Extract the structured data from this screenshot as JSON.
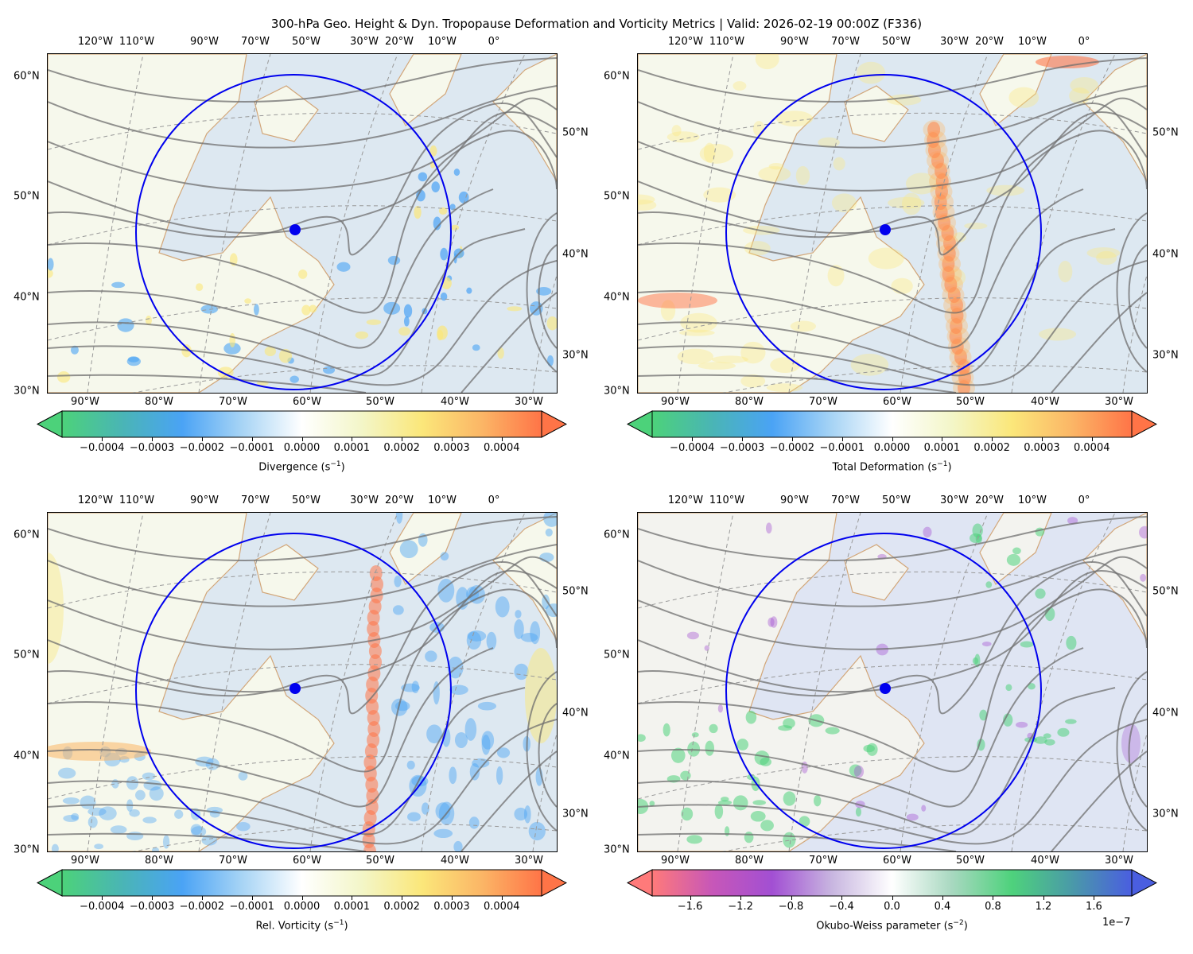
{
  "chart_data": {
    "type": "heatmap",
    "title": "300-hPa Geo. Height & Dyn. Tropopause Deformation and Vorticity Metrics |  Valid: 2026-02-19 00:00Z (F336)",
    "overlays": {
      "contours": "300-hPa geopotential height (gray)",
      "circle": "blue radius ring around storm center",
      "center_marker": "blue dot"
    },
    "panels": [
      {
        "id": "divergence",
        "field": "Divergence",
        "colorbar_label": "Divergence (s",
        "colorbar_unit_exp": "−1",
        "colorbar_range": [
          -0.00048,
          0.00048
        ],
        "colorbar_ticks": [
          "−0.0004",
          "−0.0003",
          "−0.0002",
          "−0.0001",
          "0.0000",
          "0.0001",
          "0.0002",
          "0.0003",
          "0.0004"
        ],
        "colorbar_tick_values": [
          -0.0004,
          -0.0003,
          -0.0002,
          -0.0001,
          0.0,
          0.0001,
          0.0002,
          0.0003,
          0.0004
        ],
        "colormap": [
          "#4cd27a",
          "#4ab5b5",
          "#4aa3f5",
          "#a7d4f5",
          "#ffffff",
          "#f3f6c8",
          "#fbe77a",
          "#fbb666",
          "#ff7447"
        ],
        "extend": "both"
      },
      {
        "id": "total_deformation",
        "field": "Total Deformation",
        "colorbar_label": "Total Deformation (s",
        "colorbar_unit_exp": "−1",
        "colorbar_range": [
          -0.00048,
          0.00048
        ],
        "colorbar_ticks": [
          "−0.0004",
          "−0.0003",
          "−0.0002",
          "−0.0001",
          "0.0000",
          "0.0001",
          "0.0002",
          "0.0003",
          "0.0004"
        ],
        "colorbar_tick_values": [
          -0.0004,
          -0.0003,
          -0.0002,
          -0.0001,
          0.0,
          0.0001,
          0.0002,
          0.0003,
          0.0004
        ],
        "colormap": [
          "#4cd27a",
          "#4ab5b5",
          "#4aa3f5",
          "#a7d4f5",
          "#ffffff",
          "#f3f6c8",
          "#fbe77a",
          "#fbb666",
          "#ff7447"
        ],
        "extend": "both"
      },
      {
        "id": "relative_vorticity",
        "field": "Rel. Vorticity",
        "colorbar_label": "Rel. Vorticity (s",
        "colorbar_unit_exp": "−1",
        "colorbar_range": [
          -0.00048,
          0.00048
        ],
        "colorbar_ticks": [
          "−0.0004",
          "−0.0003",
          "−0.0002",
          "−0.0001",
          "0.0000",
          "0.0001",
          "0.0002",
          "0.0003",
          "0.0004"
        ],
        "colorbar_tick_values": [
          -0.0004,
          -0.0003,
          -0.0002,
          -0.0001,
          0.0,
          0.0001,
          0.0002,
          0.0003,
          0.0004
        ],
        "colormap": [
          "#4cd27a",
          "#4ab5b5",
          "#4aa3f5",
          "#a7d4f5",
          "#ffffff",
          "#f3f6c8",
          "#fbe77a",
          "#fbb666",
          "#ff7447"
        ],
        "extend": "both"
      },
      {
        "id": "okubo_weiss",
        "field": "Okubo-Weiss parameter",
        "colorbar_label": "Okubo-Weiss parameter (s",
        "colorbar_unit_exp": "−2",
        "colorbar_range": [
          -1.9,
          1.9
        ],
        "colorbar_ticks": [
          "−1.6",
          "−1.2",
          "−0.8",
          "−0.4",
          "0.0",
          "0.4",
          "0.8",
          "1.2",
          "1.6"
        ],
        "colorbar_tick_values": [
          -1.6,
          -1.2,
          -0.8,
          -0.4,
          0.0,
          0.4,
          0.8,
          1.2,
          1.6
        ],
        "colorbar_scale": "1e−7",
        "colormap": [
          "#ff7a7a",
          "#c757b8",
          "#a24fd3",
          "#c8b6e0",
          "#ffffff",
          "#a8d8c0",
          "#4ed27c",
          "#4a9aa8",
          "#4a5ee0"
        ],
        "extend": "both"
      }
    ],
    "axes": {
      "top_lon_labels": [
        "120°W",
        "110°W",
        "90°W",
        "70°W",
        "50°W",
        "30°W",
        "20°W",
        "10°W",
        "0°"
      ],
      "bottom_lon_labels": [
        "90°W",
        "80°W",
        "70°W",
        "60°W",
        "50°W",
        "40°W",
        "30°W"
      ],
      "left_lat_labels": [
        "60°N",
        "50°N",
        "40°N",
        "30°N"
      ],
      "right_lat_labels": [
        "50°N",
        "40°N",
        "30°N"
      ]
    }
  }
}
